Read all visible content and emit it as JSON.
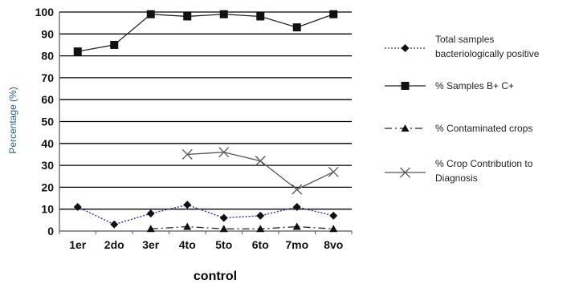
{
  "chart_data": {
    "type": "line",
    "categories": [
      "1er",
      "2do",
      "3er",
      "4to",
      "5to",
      "6to",
      "7mo",
      "8vo"
    ],
    "xlabel": "control",
    "ylabel": "Percentage (%)",
    "ylim": [
      0,
      100
    ],
    "yticks": [
      0,
      10,
      20,
      30,
      40,
      50,
      60,
      70,
      80,
      90,
      100
    ],
    "grid": true,
    "legend_position": "right",
    "series": [
      {
        "name": "Total samples bacteriologically positive",
        "legend_lines": [
          "Total samples",
          "bacteriologically positive"
        ],
        "values": [
          11,
          3,
          8,
          12,
          6,
          7,
          11,
          7
        ],
        "color": "#2b2fa0",
        "dash": "dotted",
        "marker": "diamond"
      },
      {
        "name": "% Samples B+ C+",
        "legend_lines": [
          "% Samples B+ C+"
        ],
        "values": [
          82,
          85,
          99,
          98,
          99,
          98,
          93,
          99
        ],
        "color": "#222222",
        "dash": "solid",
        "marker": "square"
      },
      {
        "name": "% Contaminated crops",
        "legend_lines": [
          "% Contaminated crops"
        ],
        "values": [
          null,
          null,
          1,
          2,
          1,
          1,
          2,
          1
        ],
        "color": "#222222",
        "dash": "dashdot",
        "marker": "triangle"
      },
      {
        "name": "% Crop Contribution to Diagnosis",
        "legend_lines": [
          "% Crop Contribution to",
          "Diagnosis"
        ],
        "values": [
          null,
          null,
          null,
          35,
          36,
          32,
          19,
          27
        ],
        "color": "#555555",
        "dash": "solid",
        "marker": "x"
      }
    ]
  }
}
